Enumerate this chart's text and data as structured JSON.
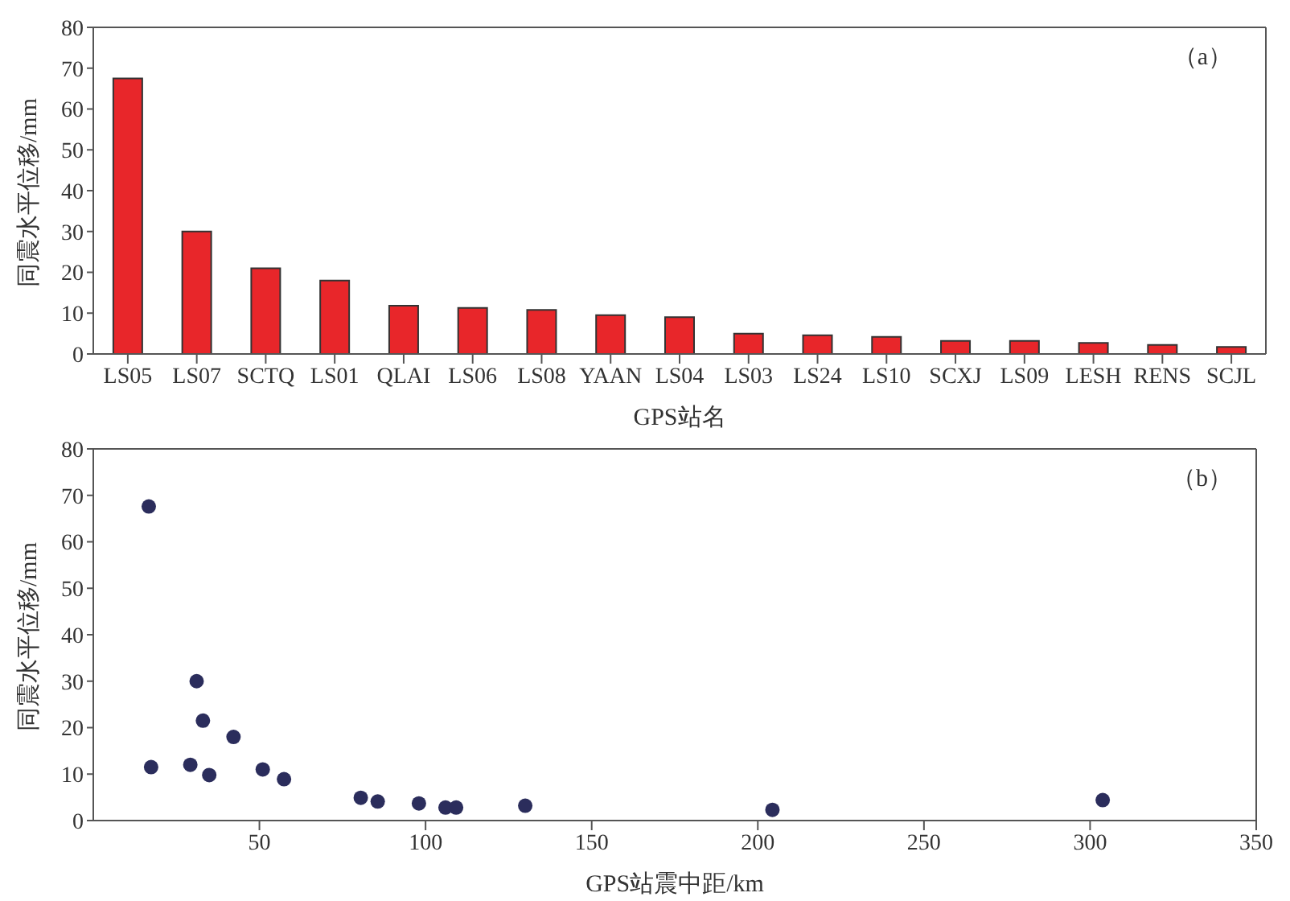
{
  "chart_data": [
    {
      "type": "bar",
      "categories": [
        "LS05",
        "LS07",
        "SCTQ",
        "LS01",
        "QLAI",
        "LS06",
        "LS08",
        "YAAN",
        "LS04",
        "LS03",
        "LS24",
        "LS10",
        "SCXJ",
        "LS09",
        "LESH",
        "RENS",
        "SCJL"
      ],
      "values": [
        67.5,
        30,
        21,
        18,
        11.8,
        11.3,
        10.8,
        9.5,
        9,
        5,
        4.6,
        4.2,
        3.2,
        3.2,
        2.7,
        2.2,
        1.7
      ],
      "color": "#e8262a",
      "ylim": [
        0,
        80
      ],
      "yticks": [
        0,
        10,
        20,
        30,
        40,
        50,
        60,
        70,
        80
      ],
      "xlabel": "GPS站名",
      "ylabel": "同震水平位移/mm",
      "annotations": [
        "（a）"
      ],
      "grid": false
    },
    {
      "type": "scatter",
      "x": [
        16.7,
        17.4,
        29.2,
        31.1,
        33,
        34.9,
        42.2,
        51,
        57.4,
        80.5,
        85.6,
        98,
        106,
        109.2,
        130,
        204.4,
        303.8
      ],
      "values": [
        67.6,
        11.5,
        12,
        30,
        21.5,
        9.8,
        18,
        11,
        8.9,
        4.9,
        4.1,
        3.7,
        2.8,
        2.8,
        3.2,
        2.3,
        4.4
      ],
      "color": "#2b2d5c",
      "xlim": [
        0,
        350
      ],
      "xticks": [
        50,
        100,
        150,
        200,
        250,
        300,
        350
      ],
      "ylim": [
        0,
        80
      ],
      "yticks": [
        0,
        10,
        20,
        30,
        40,
        50,
        60,
        70,
        80
      ],
      "xlabel": "GPS站震中距/km",
      "ylabel": "同震水平位移/mm",
      "annotations": [
        "（b）"
      ],
      "grid": false,
      "marker": "circle"
    }
  ]
}
